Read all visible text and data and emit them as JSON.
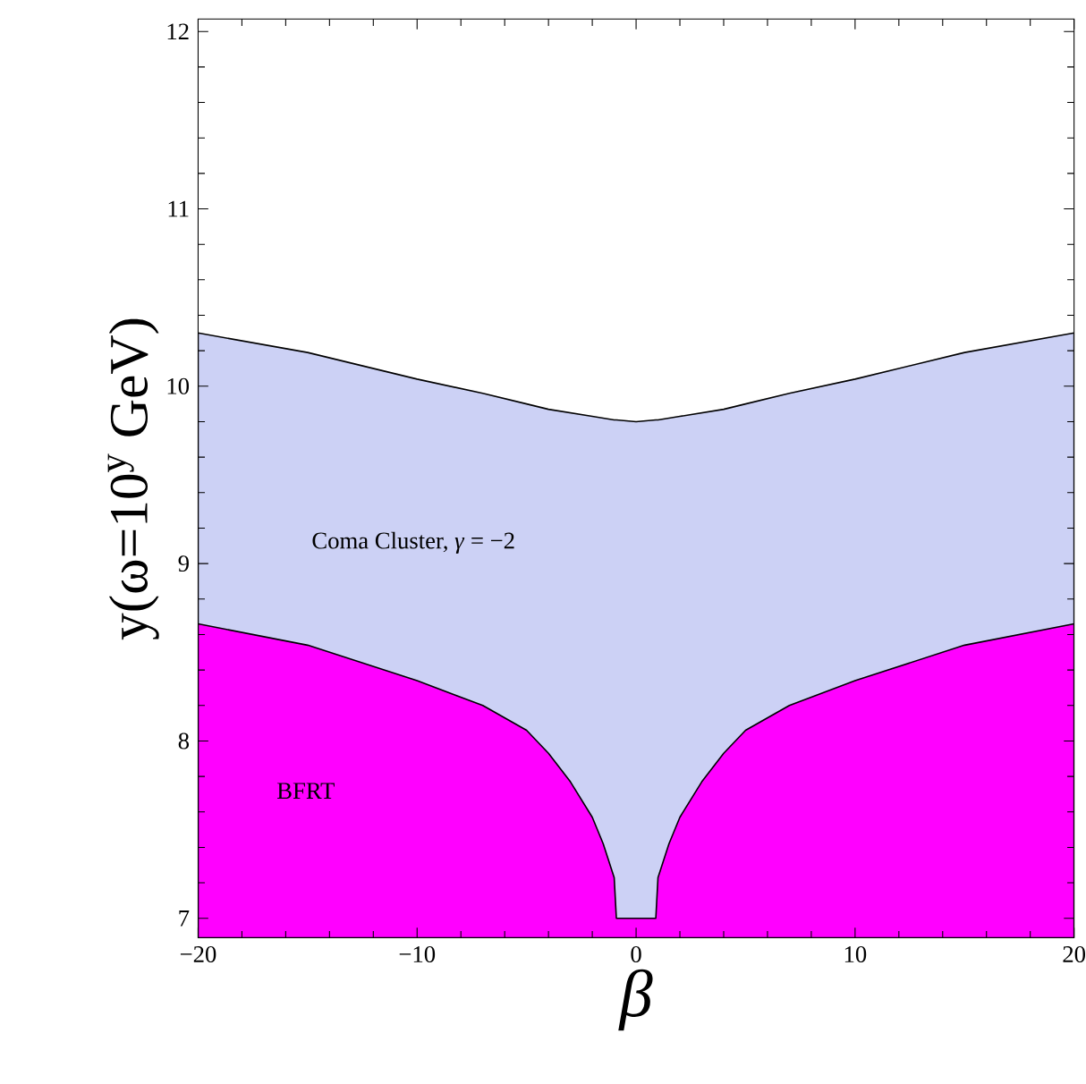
{
  "chart_data": {
    "type": "area",
    "xlabel": "β",
    "ylabel": "y(ω=10$^{y}$ GeV)",
    "x": [
      -20,
      -15,
      -10,
      -7,
      -5,
      -4,
      -3,
      -2,
      -1.5,
      -1,
      -0.9,
      0,
      0.9,
      1,
      1.5,
      2,
      3,
      4,
      5,
      7,
      10,
      15,
      20
    ],
    "series": [
      {
        "name": "Coma Cluster, *γ* = −2",
        "color": "#ccd1f5",
        "values": [
          10.3,
          10.19,
          10.04,
          9.96,
          9.9,
          9.87,
          9.85,
          9.83,
          9.82,
          9.81,
          9.81,
          9.8,
          9.81,
          9.81,
          9.82,
          9.83,
          9.85,
          9.87,
          9.9,
          9.96,
          10.04,
          10.19,
          10.3
        ]
      },
      {
        "name": "BFRT",
        "color": "#ff00ff",
        "values": [
          8.66,
          8.54,
          8.34,
          8.2,
          8.06,
          7.93,
          7.77,
          7.57,
          7.42,
          7.23,
          7.0,
          7.0,
          7.0,
          7.23,
          7.42,
          7.57,
          7.77,
          7.93,
          8.06,
          8.2,
          8.34,
          8.54,
          8.66
        ]
      }
    ],
    "xlim": [
      -20,
      20
    ],
    "ylim": [
      6.89,
      12.07
    ],
    "xticks": [
      {
        "value": -20,
        "label": "−20"
      },
      {
        "value": -10,
        "label": "−10"
      },
      0,
      10,
      20
    ],
    "yticks": [
      7,
      8,
      9,
      10,
      11,
      12
    ],
    "grid": false
  }
}
